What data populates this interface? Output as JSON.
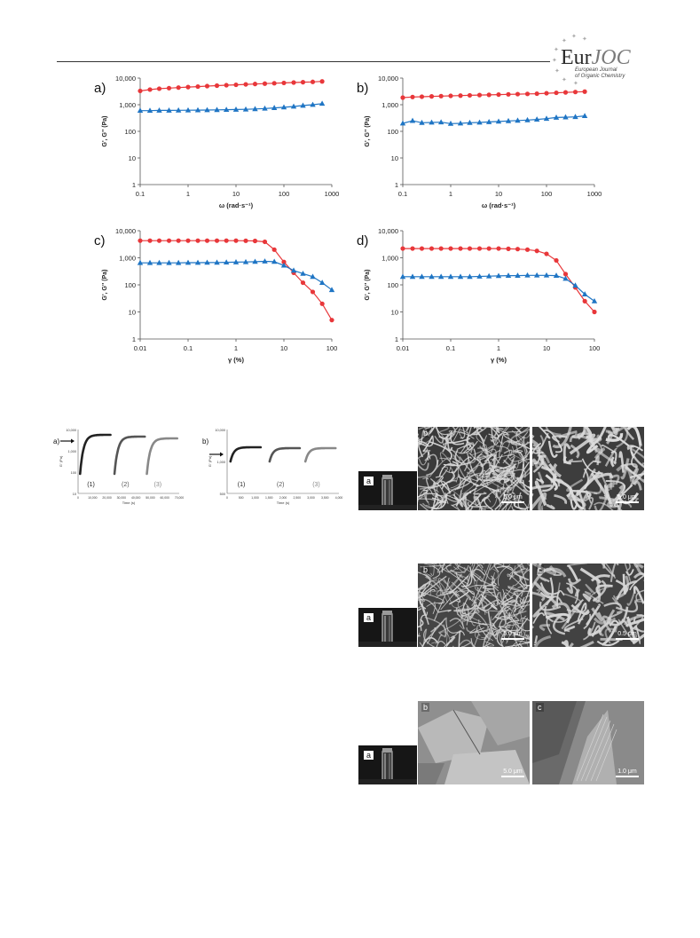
{
  "header": {
    "logo_main_a": "Eur",
    "logo_main_b": "JOC",
    "logo_sub_1": "European Journal",
    "logo_sub_2": "of Organic Chemistry"
  },
  "rheology": {
    "colors": {
      "g_prime": "#e8373a",
      "g_double": "#1f75c4"
    },
    "y_tick_labels": [
      "10,000",
      "1,000",
      "100",
      "10",
      "1"
    ],
    "ylabel": "G', G'' (Pa)",
    "panels": [
      {
        "label": "a)",
        "xlabel": "ω (rad·s⁻¹)",
        "x_ticks": [
          0.1,
          1,
          10,
          100,
          1000
        ],
        "x_tick_labels": [
          "0.1",
          "1",
          "10",
          "100",
          "1000"
        ],
        "xlim": [
          0.1,
          1000
        ],
        "ylim": [
          1,
          10000
        ],
        "chart_data": {
          "type": "scatter",
          "x_scale": "log",
          "y_scale": "log",
          "series": [
            {
              "key": "g_prime",
              "marker": "circle",
              "x": [
                0.1,
                0.16,
                0.25,
                0.4,
                0.63,
                1,
                1.6,
                2.5,
                4,
                6.3,
                10,
                16,
                25,
                40,
                63,
                100,
                160,
                250,
                400,
                628
              ],
              "y": [
                3300,
                3700,
                4000,
                4200,
                4400,
                4600,
                4800,
                5000,
                5200,
                5400,
                5600,
                5800,
                6000,
                6200,
                6400,
                6600,
                6800,
                7000,
                7200,
                7500
              ]
            },
            {
              "key": "g_double",
              "marker": "triangle",
              "x": [
                0.1,
                0.16,
                0.25,
                0.4,
                0.63,
                1,
                1.6,
                2.5,
                4,
                6.3,
                10,
                16,
                25,
                40,
                63,
                100,
                160,
                250,
                400,
                628
              ],
              "y": [
                600,
                600,
                610,
                610,
                615,
                620,
                625,
                630,
                640,
                650,
                660,
                670,
                690,
                720,
                760,
                800,
                860,
                930,
                1000,
                1100
              ]
            }
          ]
        }
      },
      {
        "label": "b)",
        "xlabel": "ω (rad·s⁻¹)",
        "x_ticks": [
          0.1,
          1,
          10,
          100,
          1000
        ],
        "x_tick_labels": [
          "0.1",
          "1",
          "10",
          "100",
          "1000"
        ],
        "xlim": [
          0.1,
          1000
        ],
        "ylim": [
          1,
          10000
        ],
        "chart_data": {
          "type": "scatter",
          "x_scale": "log",
          "y_scale": "log",
          "series": [
            {
              "key": "g_prime",
              "marker": "circle",
              "x": [
                0.1,
                0.16,
                0.25,
                0.4,
                0.63,
                1,
                1.6,
                2.5,
                4,
                6.3,
                10,
                16,
                25,
                40,
                63,
                100,
                160,
                250,
                400,
                628
              ],
              "y": [
                1850,
                1950,
                2000,
                2050,
                2100,
                2150,
                2200,
                2250,
                2300,
                2350,
                2400,
                2450,
                2500,
                2550,
                2600,
                2700,
                2800,
                2900,
                3000,
                3100
              ]
            },
            {
              "key": "g_double",
              "marker": "triangle",
              "x": [
                0.1,
                0.16,
                0.25,
                0.4,
                0.63,
                1,
                1.6,
                2.5,
                4,
                6.3,
                10,
                16,
                25,
                40,
                63,
                100,
                160,
                250,
                400,
                628
              ],
              "y": [
                200,
                250,
                210,
                215,
                220,
                195,
                200,
                210,
                215,
                225,
                235,
                245,
                255,
                265,
                280,
                300,
                330,
                340,
                350,
                380
              ]
            }
          ]
        }
      },
      {
        "label": "c)",
        "xlabel": "γ (%)",
        "x_ticks": [
          0.01,
          0.1,
          1,
          10,
          100
        ],
        "x_tick_labels": [
          "0.01",
          "0.1",
          "1",
          "10",
          "100"
        ],
        "xlim": [
          0.01,
          100
        ],
        "ylim": [
          1,
          10000
        ],
        "chart_data": {
          "type": "scatter",
          "x_scale": "log",
          "y_scale": "log",
          "series": [
            {
              "key": "g_prime",
              "marker": "circle",
              "x": [
                0.01,
                0.016,
                0.025,
                0.04,
                0.063,
                0.1,
                0.16,
                0.25,
                0.4,
                0.63,
                1,
                1.6,
                2.5,
                4,
                6.3,
                10,
                16,
                25,
                40,
                63,
                100
              ],
              "y": [
                4300,
                4300,
                4300,
                4300,
                4300,
                4300,
                4300,
                4300,
                4300,
                4300,
                4300,
                4250,
                4200,
                3900,
                2000,
                700,
                280,
                120,
                55,
                20,
                5
              ]
            },
            {
              "key": "g_double",
              "marker": "triangle",
              "x": [
                0.01,
                0.016,
                0.025,
                0.04,
                0.063,
                0.1,
                0.16,
                0.25,
                0.4,
                0.63,
                1,
                1.6,
                2.5,
                4,
                6.3,
                10,
                16,
                25,
                40,
                63,
                100
              ],
              "y": [
                650,
                650,
                650,
                650,
                650,
                660,
                660,
                665,
                670,
                680,
                690,
                700,
                720,
                740,
                720,
                520,
                340,
                260,
                200,
                120,
                65
              ]
            }
          ]
        }
      },
      {
        "label": "d)",
        "xlabel": "γ (%)",
        "x_ticks": [
          0.01,
          0.1,
          1,
          10,
          100
        ],
        "x_tick_labels": [
          "0.01",
          "0.1",
          "1",
          "10",
          "100"
        ],
        "xlim": [
          0.01,
          100
        ],
        "ylim": [
          1,
          10000
        ],
        "chart_data": {
          "type": "scatter",
          "x_scale": "log",
          "y_scale": "log",
          "series": [
            {
              "key": "g_prime",
              "marker": "circle",
              "x": [
                0.01,
                0.016,
                0.025,
                0.04,
                0.063,
                0.1,
                0.16,
                0.25,
                0.4,
                0.63,
                1,
                1.6,
                2.5,
                4,
                6.3,
                10,
                16,
                25,
                40,
                63,
                100
              ],
              "y": [
                2200,
                2200,
                2200,
                2200,
                2200,
                2200,
                2200,
                2200,
                2200,
                2200,
                2200,
                2150,
                2100,
                2000,
                1800,
                1400,
                800,
                250,
                80,
                25,
                10
              ]
            },
            {
              "key": "g_double",
              "marker": "triangle",
              "x": [
                0.01,
                0.016,
                0.025,
                0.04,
                0.063,
                0.1,
                0.16,
                0.25,
                0.4,
                0.63,
                1,
                1.6,
                2.5,
                4,
                6.3,
                10,
                16,
                25,
                40,
                63,
                100
              ],
              "y": [
                200,
                200,
                200,
                200,
                200,
                200,
                200,
                200,
                205,
                210,
                215,
                220,
                220,
                225,
                225,
                225,
                220,
                170,
                95,
                45,
                25
              ]
            }
          ]
        }
      }
    ]
  },
  "recovery": {
    "panels": [
      {
        "label": "a)",
        "ylabel": "G' (Pa)",
        "xlabel": "Time (s)",
        "y_tick_labels": [
          "10,000",
          "1,000",
          "100",
          "10"
        ],
        "x_tick_labels": [
          "0",
          "10,000",
          "20,000",
          "30,000",
          "40,000",
          "50,000",
          "60,000",
          "70,000"
        ],
        "curve_labels": [
          "(1)",
          "(2)",
          "(3)"
        ]
      },
      {
        "label": "b)",
        "ylabel": "G' (Pa)",
        "xlabel": "Time (s)",
        "y_tick_labels": [
          "10,000",
          "1,000",
          "500"
        ],
        "x_tick_labels": [
          "0",
          "500",
          "1,000",
          "1,500",
          "2,000",
          "2,500",
          "3,000",
          "3,500",
          "4,000"
        ],
        "curve_labels": [
          "(1)",
          "(2)",
          "(3)"
        ]
      }
    ]
  },
  "micrographs": {
    "rows": [
      {
        "vial_label": "a",
        "sem": [
          {
            "label": "b",
            "scale": "5.0 μm"
          },
          {
            "label": "",
            "scale": "5.0 μm"
          }
        ]
      },
      {
        "vial_label": "a",
        "sem": [
          {
            "label": "b",
            "scale": "5.0 μm"
          },
          {
            "label": "c",
            "scale": "0.5 μm"
          }
        ]
      },
      {
        "vial_label": "a",
        "sem": [
          {
            "label": "b",
            "scale": "5.0 μm"
          },
          {
            "label": "c",
            "scale": "1.0 μm"
          }
        ]
      }
    ]
  }
}
